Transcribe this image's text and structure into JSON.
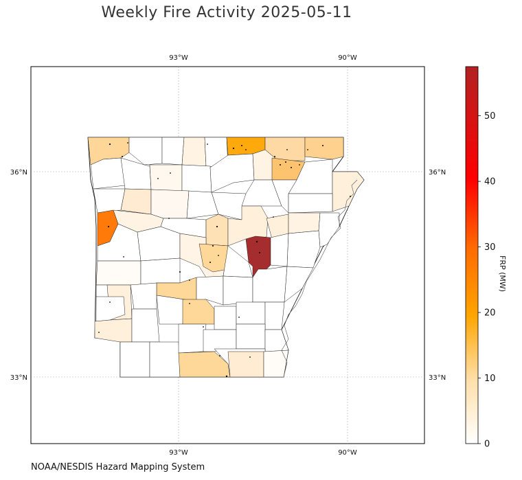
{
  "title": "Weekly Fire Activity 2025-05-11",
  "credit": "NOAA/NESDIS Hazard Mapping System",
  "colorbar": {
    "label": "FRP (MW)",
    "ticks": [
      "0",
      "10",
      "20",
      "30",
      "40",
      "50"
    ],
    "min": 0,
    "max": 57.5,
    "colors": [
      "#ffffff",
      "#ffd9a0",
      "#ffa500",
      "#ff6a00",
      "#ff0000",
      "#b22222"
    ]
  },
  "axes": {
    "lon_labels": [
      "93°W",
      "90°W"
    ],
    "lat_labels": [
      "36°N",
      "33°N"
    ]
  },
  "chart_data": {
    "type": "choropleth",
    "title": "Weekly Fire Activity 2025-05-11",
    "region": "Arkansas counties",
    "value_label": "FRP (MW)",
    "color_range": [
      0,
      57.5
    ],
    "hot_counties": [
      {
        "position": "east-central",
        "frp": 57
      },
      {
        "position": "west (Sebastian area)",
        "frp": 24
      },
      {
        "position": "north-central",
        "frp": 17
      },
      {
        "position": "north-east",
        "frp": 13
      },
      {
        "position": "north-east (Greene area)",
        "frp": 12
      },
      {
        "position": "north-west",
        "frp": 8
      },
      {
        "position": "north",
        "frp": 8
      },
      {
        "position": "central",
        "frp": 8
      },
      {
        "position": "south",
        "frp": 8
      },
      {
        "position": "south-central",
        "frp": 9
      }
    ]
  }
}
